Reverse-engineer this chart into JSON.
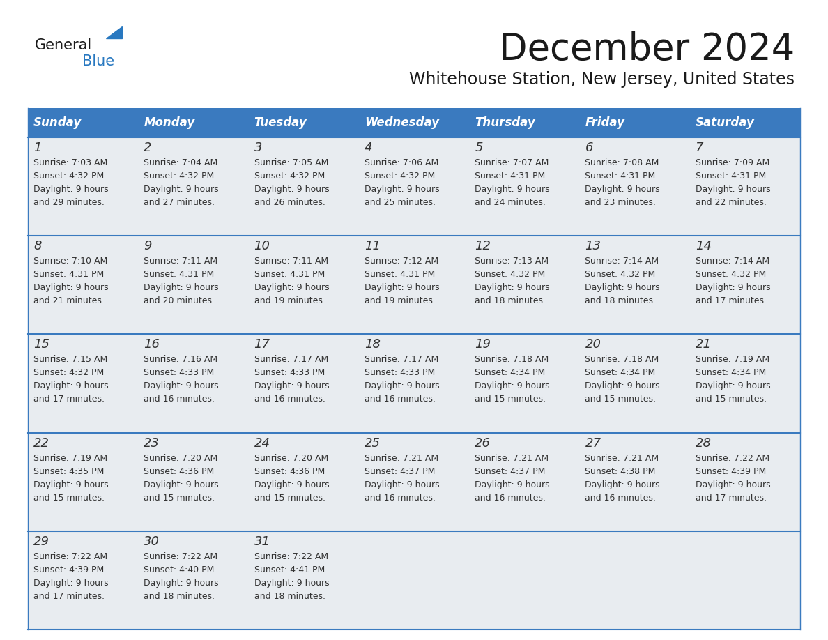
{
  "title": "December 2024",
  "subtitle": "Whitehouse Station, New Jersey, United States",
  "header_color": "#3a7abf",
  "header_text_color": "#ffffff",
  "cell_bg_color": "#e8ecf0",
  "border_color": "#3a7abf",
  "text_color": "#333333",
  "days_of_week": [
    "Sunday",
    "Monday",
    "Tuesday",
    "Wednesday",
    "Thursday",
    "Friday",
    "Saturday"
  ],
  "calendar_data": [
    [
      {
        "day": "1",
        "sunrise": "7:03 AM",
        "sunset": "4:32 PM",
        "daylight": "9 hours",
        "daylight2": "and 29 minutes."
      },
      {
        "day": "2",
        "sunrise": "7:04 AM",
        "sunset": "4:32 PM",
        "daylight": "9 hours",
        "daylight2": "and 27 minutes."
      },
      {
        "day": "3",
        "sunrise": "7:05 AM",
        "sunset": "4:32 PM",
        "daylight": "9 hours",
        "daylight2": "and 26 minutes."
      },
      {
        "day": "4",
        "sunrise": "7:06 AM",
        "sunset": "4:32 PM",
        "daylight": "9 hours",
        "daylight2": "and 25 minutes."
      },
      {
        "day": "5",
        "sunrise": "7:07 AM",
        "sunset": "4:31 PM",
        "daylight": "9 hours",
        "daylight2": "and 24 minutes."
      },
      {
        "day": "6",
        "sunrise": "7:08 AM",
        "sunset": "4:31 PM",
        "daylight": "9 hours",
        "daylight2": "and 23 minutes."
      },
      {
        "day": "7",
        "sunrise": "7:09 AM",
        "sunset": "4:31 PM",
        "daylight": "9 hours",
        "daylight2": "and 22 minutes."
      }
    ],
    [
      {
        "day": "8",
        "sunrise": "7:10 AM",
        "sunset": "4:31 PM",
        "daylight": "9 hours",
        "daylight2": "and 21 minutes."
      },
      {
        "day": "9",
        "sunrise": "7:11 AM",
        "sunset": "4:31 PM",
        "daylight": "9 hours",
        "daylight2": "and 20 minutes."
      },
      {
        "day": "10",
        "sunrise": "7:11 AM",
        "sunset": "4:31 PM",
        "daylight": "9 hours",
        "daylight2": "and 19 minutes."
      },
      {
        "day": "11",
        "sunrise": "7:12 AM",
        "sunset": "4:31 PM",
        "daylight": "9 hours",
        "daylight2": "and 19 minutes."
      },
      {
        "day": "12",
        "sunrise": "7:13 AM",
        "sunset": "4:32 PM",
        "daylight": "9 hours",
        "daylight2": "and 18 minutes."
      },
      {
        "day": "13",
        "sunrise": "7:14 AM",
        "sunset": "4:32 PM",
        "daylight": "9 hours",
        "daylight2": "and 18 minutes."
      },
      {
        "day": "14",
        "sunrise": "7:14 AM",
        "sunset": "4:32 PM",
        "daylight": "9 hours",
        "daylight2": "and 17 minutes."
      }
    ],
    [
      {
        "day": "15",
        "sunrise": "7:15 AM",
        "sunset": "4:32 PM",
        "daylight": "9 hours",
        "daylight2": "and 17 minutes."
      },
      {
        "day": "16",
        "sunrise": "7:16 AM",
        "sunset": "4:33 PM",
        "daylight": "9 hours",
        "daylight2": "and 16 minutes."
      },
      {
        "day": "17",
        "sunrise": "7:17 AM",
        "sunset": "4:33 PM",
        "daylight": "9 hours",
        "daylight2": "and 16 minutes."
      },
      {
        "day": "18",
        "sunrise": "7:17 AM",
        "sunset": "4:33 PM",
        "daylight": "9 hours",
        "daylight2": "and 16 minutes."
      },
      {
        "day": "19",
        "sunrise": "7:18 AM",
        "sunset": "4:34 PM",
        "daylight": "9 hours",
        "daylight2": "and 15 minutes."
      },
      {
        "day": "20",
        "sunrise": "7:18 AM",
        "sunset": "4:34 PM",
        "daylight": "9 hours",
        "daylight2": "and 15 minutes."
      },
      {
        "day": "21",
        "sunrise": "7:19 AM",
        "sunset": "4:34 PM",
        "daylight": "9 hours",
        "daylight2": "and 15 minutes."
      }
    ],
    [
      {
        "day": "22",
        "sunrise": "7:19 AM",
        "sunset": "4:35 PM",
        "daylight": "9 hours",
        "daylight2": "and 15 minutes."
      },
      {
        "day": "23",
        "sunrise": "7:20 AM",
        "sunset": "4:36 PM",
        "daylight": "9 hours",
        "daylight2": "and 15 minutes."
      },
      {
        "day": "24",
        "sunrise": "7:20 AM",
        "sunset": "4:36 PM",
        "daylight": "9 hours",
        "daylight2": "and 15 minutes."
      },
      {
        "day": "25",
        "sunrise": "7:21 AM",
        "sunset": "4:37 PM",
        "daylight": "9 hours",
        "daylight2": "and 16 minutes."
      },
      {
        "day": "26",
        "sunrise": "7:21 AM",
        "sunset": "4:37 PM",
        "daylight": "9 hours",
        "daylight2": "and 16 minutes."
      },
      {
        "day": "27",
        "sunrise": "7:21 AM",
        "sunset": "4:38 PM",
        "daylight": "9 hours",
        "daylight2": "and 16 minutes."
      },
      {
        "day": "28",
        "sunrise": "7:22 AM",
        "sunset": "4:39 PM",
        "daylight": "9 hours",
        "daylight2": "and 17 minutes."
      }
    ],
    [
      {
        "day": "29",
        "sunrise": "7:22 AM",
        "sunset": "4:39 PM",
        "daylight": "9 hours",
        "daylight2": "and 17 minutes."
      },
      {
        "day": "30",
        "sunrise": "7:22 AM",
        "sunset": "4:40 PM",
        "daylight": "9 hours",
        "daylight2": "and 18 minutes."
      },
      {
        "day": "31",
        "sunrise": "7:22 AM",
        "sunset": "4:41 PM",
        "daylight": "9 hours",
        "daylight2": "and 18 minutes."
      },
      null,
      null,
      null,
      null
    ]
  ],
  "logo_general_color": "#1a1a1a",
  "logo_blue_color": "#2878c0",
  "logo_triangle_color": "#2878c0"
}
